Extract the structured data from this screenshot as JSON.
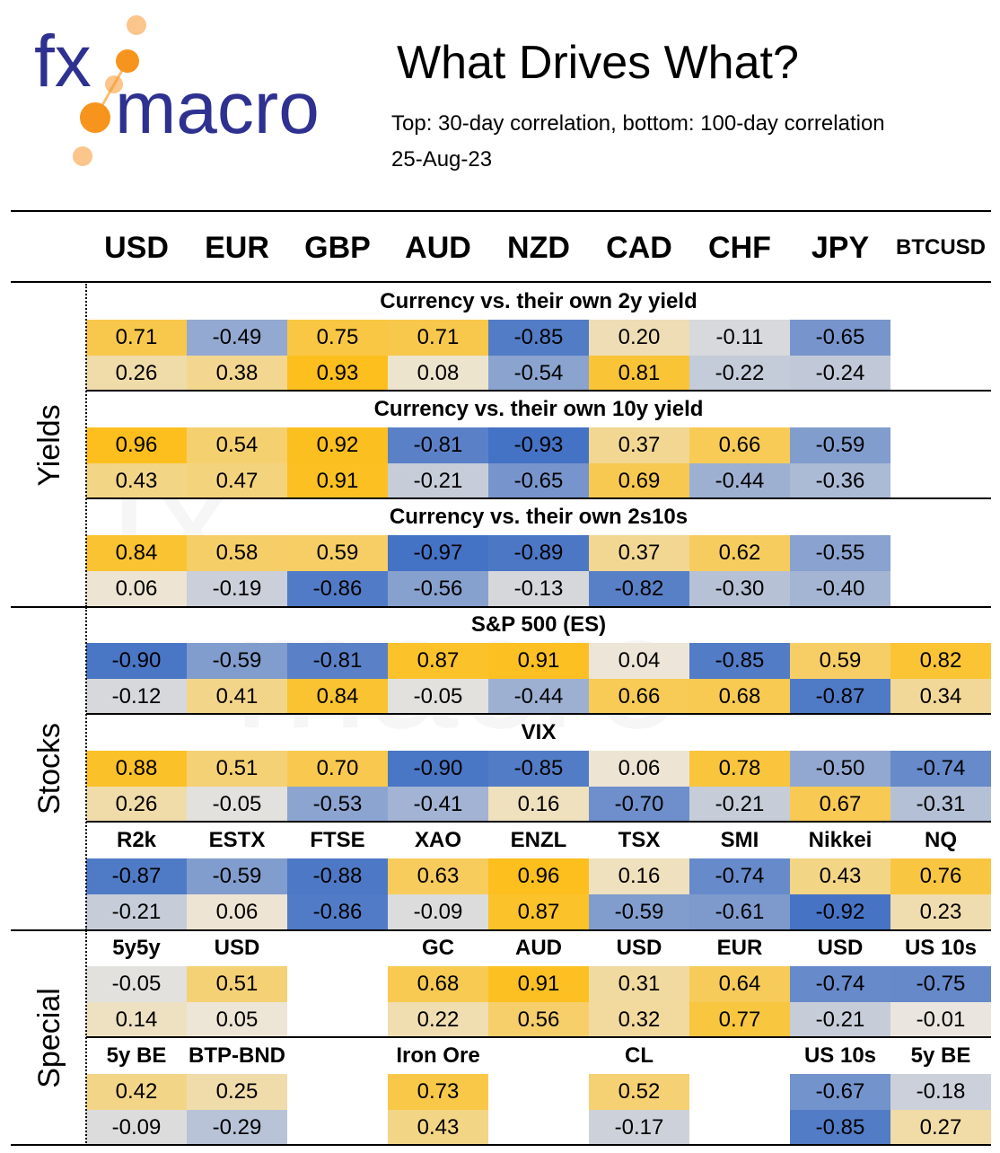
{
  "logo": {
    "line1": "fx",
    "line2": "macro"
  },
  "title": "What Drives What?",
  "subtitle": "Top: 30-day correlation, bottom: 100-day correlation",
  "date": "25-Aug-23",
  "colors": {
    "strong_positive": "#fcbf1e",
    "mid_positive": "#f8d96a",
    "neutral": "#ece7df",
    "mid_negative": "#8faadc",
    "strong_negative": "#4472c4",
    "text": "#000000",
    "logo_orange": "#f7941d",
    "logo_blue": "#2e3190"
  },
  "chart_data": {
    "type": "table",
    "columns": [
      "USD",
      "EUR",
      "GBP",
      "AUD",
      "NZD",
      "CAD",
      "CHF",
      "JPY",
      "BTCUSD"
    ],
    "sections": [
      {
        "label": "Yields",
        "blocks": [
          {
            "title": "Currency vs. their own 2y yield",
            "rows": [
              [
                0.71,
                -0.49,
                0.75,
                0.71,
                -0.85,
                0.2,
                -0.11,
                -0.65,
                null
              ],
              [
                0.26,
                0.38,
                0.93,
                0.08,
                -0.54,
                0.81,
                -0.22,
                -0.24,
                null
              ]
            ]
          },
          {
            "title": "Currency vs. their own 10y yield",
            "rows": [
              [
                0.96,
                0.54,
                0.92,
                -0.81,
                -0.93,
                0.37,
                0.66,
                -0.59,
                null
              ],
              [
                0.43,
                0.47,
                0.91,
                -0.21,
                -0.65,
                0.69,
                -0.44,
                -0.36,
                null
              ]
            ]
          },
          {
            "title": "Currency vs. their own 2s10s",
            "rows": [
              [
                0.84,
                0.58,
                0.59,
                -0.97,
                -0.89,
                0.37,
                0.62,
                -0.55,
                null
              ],
              [
                0.06,
                -0.19,
                -0.86,
                -0.56,
                -0.13,
                -0.82,
                -0.3,
                -0.4,
                null
              ]
            ]
          }
        ]
      },
      {
        "label": "Stocks",
        "blocks": [
          {
            "title": "S&P 500 (ES)",
            "rows": [
              [
                -0.9,
                -0.59,
                -0.81,
                0.87,
                0.91,
                0.04,
                -0.85,
                0.59,
                0.82
              ],
              [
                -0.12,
                0.41,
                0.84,
                -0.05,
                -0.44,
                0.66,
                0.68,
                -0.87,
                0.34
              ]
            ]
          },
          {
            "title": "VIX",
            "rows": [
              [
                0.88,
                0.51,
                0.7,
                -0.9,
                -0.85,
                0.06,
                0.78,
                -0.5,
                -0.74
              ],
              [
                0.26,
                -0.05,
                -0.53,
                -0.41,
                0.16,
                -0.7,
                -0.21,
                0.67,
                -0.31
              ]
            ]
          },
          {
            "labels": [
              "R2k",
              "ESTX",
              "FTSE",
              "XAO",
              "ENZL",
              "TSX",
              "SMI",
              "Nikkei",
              "NQ"
            ],
            "rows": [
              [
                -0.87,
                -0.59,
                -0.88,
                0.63,
                0.96,
                0.16,
                -0.74,
                0.43,
                0.76
              ],
              [
                -0.21,
                0.06,
                -0.86,
                -0.09,
                0.87,
                -0.59,
                -0.61,
                -0.92,
                0.23
              ]
            ]
          }
        ]
      },
      {
        "label": "Special",
        "blocks": [
          {
            "labels": [
              "5y5y",
              "USD",
              "",
              "GC",
              "AUD",
              "USD",
              "EUR",
              "USD",
              "US 10s"
            ],
            "rows": [
              [
                -0.05,
                0.51,
                null,
                0.68,
                0.91,
                0.31,
                0.64,
                -0.74,
                -0.75
              ],
              [
                0.14,
                0.05,
                null,
                0.22,
                0.56,
                0.32,
                0.77,
                -0.21,
                -0.01
              ]
            ]
          },
          {
            "labels": [
              "5y BE",
              "BTP-BND",
              "",
              "Iron Ore",
              "",
              "CL",
              "",
              "US 10s",
              "5y BE"
            ],
            "rows": [
              [
                0.42,
                0.25,
                null,
                0.73,
                null,
                0.52,
                null,
                -0.67,
                -0.18
              ],
              [
                -0.09,
                -0.29,
                null,
                0.43,
                null,
                -0.17,
                null,
                -0.85,
                0.27
              ]
            ]
          }
        ]
      }
    ]
  }
}
